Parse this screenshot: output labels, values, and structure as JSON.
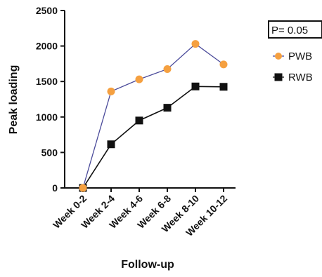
{
  "chart_data": {
    "type": "line",
    "categories": [
      "Week 0-2",
      "Week 2-4",
      "Week 4-6",
      "Week 6-8",
      "Week 8-10",
      "Week 10-12"
    ],
    "series": [
      {
        "name": "PWB",
        "values": [
          0,
          1360,
          1530,
          1675,
          2030,
          1740
        ],
        "color": "#f5a040",
        "line_color": "#4a4a9a",
        "marker": "circle"
      },
      {
        "name": "RWB",
        "values": [
          0,
          615,
          950,
          1130,
          1430,
          1425
        ],
        "color": "#111111",
        "line_color": "#111111",
        "marker": "square"
      }
    ],
    "xlabel": "Follow-up",
    "ylabel": "Peak loading",
    "ylim": [
      0,
      2500
    ],
    "yticks": [
      "0",
      "500",
      "1000",
      "1500",
      "2000",
      "2500"
    ],
    "annotation": "P= 0.05",
    "legend_position": "right",
    "grid": false
  }
}
